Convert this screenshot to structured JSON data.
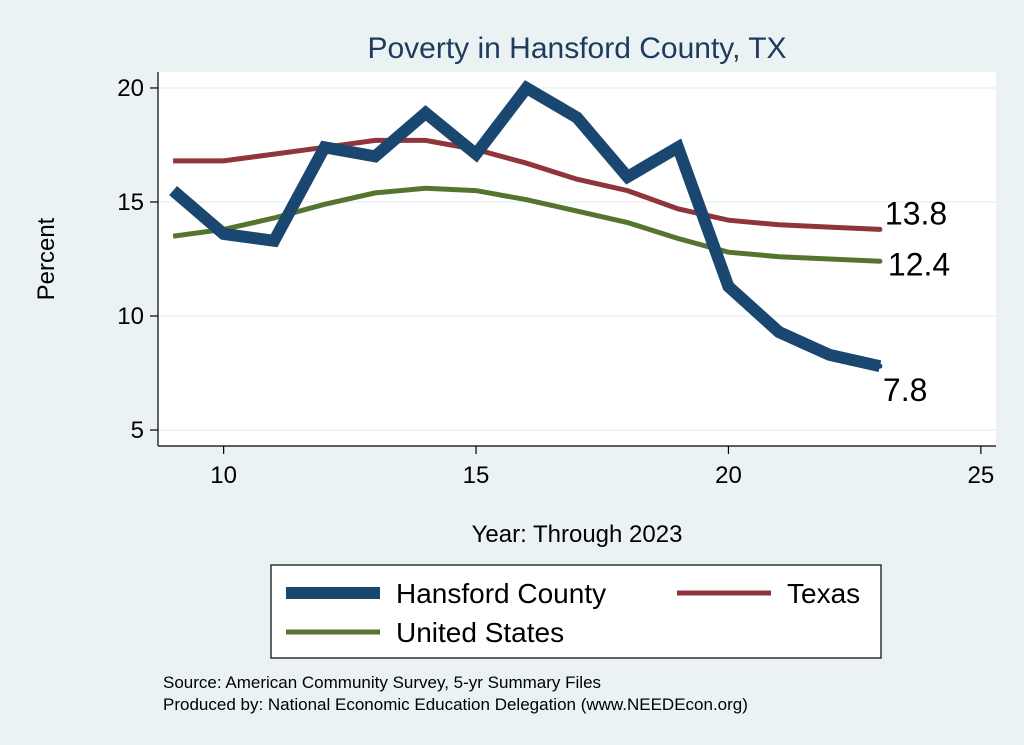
{
  "chart_data": {
    "type": "line",
    "title": "Poverty in Hansford County, TX",
    "xlabel": "Year: Through 2023",
    "ylabel": "Percent",
    "xlim": [
      8.7,
      25.3
    ],
    "ylim": [
      4.3,
      20.7
    ],
    "xticks": [
      10,
      15,
      20,
      25
    ],
    "yticks": [
      5,
      10,
      15,
      20
    ],
    "grid": true,
    "legend_position": "bottom",
    "series": [
      {
        "name": "Hansford County",
        "color": "#1a476f",
        "x": [
          9,
          10,
          11,
          12,
          13,
          14,
          15,
          16,
          17,
          18,
          19,
          20,
          21,
          22,
          23
        ],
        "values": [
          15.5,
          13.6,
          13.3,
          17.4,
          17.0,
          18.9,
          17.1,
          20.0,
          18.7,
          16.1,
          17.4,
          11.3,
          9.3,
          8.3,
          7.8
        ],
        "end_label": "7.8"
      },
      {
        "name": "Texas",
        "color": "#90353b",
        "x": [
          9,
          10,
          11,
          12,
          13,
          14,
          15,
          16,
          17,
          18,
          19,
          20,
          21,
          22,
          23
        ],
        "values": [
          16.8,
          16.8,
          17.1,
          17.4,
          17.7,
          17.7,
          17.3,
          16.7,
          16.0,
          15.5,
          14.7,
          14.2,
          14.0,
          13.9,
          13.8
        ],
        "end_label": "13.8"
      },
      {
        "name": "United States",
        "color": "#55752f",
        "x": [
          9,
          10,
          11,
          12,
          13,
          14,
          15,
          16,
          17,
          18,
          19,
          20,
          21,
          22,
          23
        ],
        "values": [
          13.5,
          13.8,
          14.3,
          14.9,
          15.4,
          15.6,
          15.5,
          15.1,
          14.6,
          14.1,
          13.4,
          12.8,
          12.6,
          12.5,
          12.4
        ],
        "end_label": "12.4"
      }
    ]
  },
  "notes": {
    "source": "Source: American Community Survey, 5-yr Summary Files",
    "produced_by": "Produced by: National Economic Education Delegation (www.NEEDEcon.org)"
  }
}
